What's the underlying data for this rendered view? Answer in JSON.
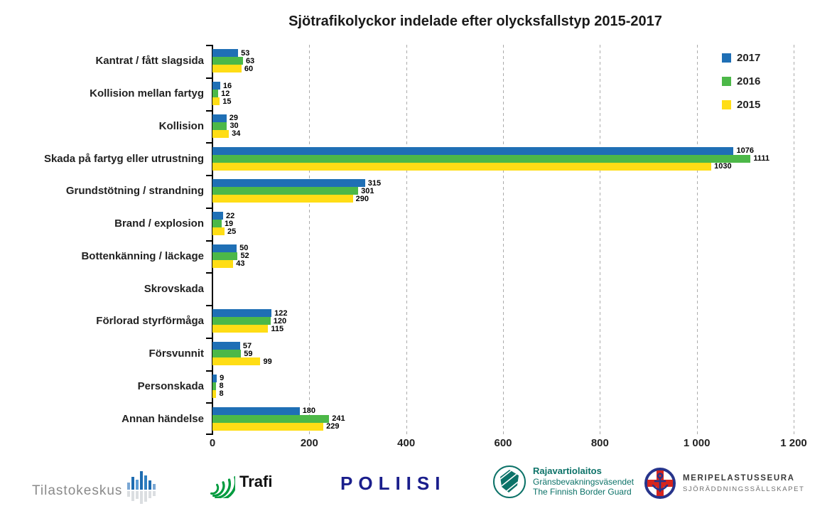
{
  "title": "Sjötrafikolyckor indelade efter olycksfallstyp 2015-2017",
  "chart_data": {
    "type": "bar",
    "orientation": "horizontal",
    "title": "Sjötrafikolyckor indelade efter olycksfallstyp 2015-2017",
    "categories": [
      "Kantrat / fått slagsida",
      "Kollision mellan fartyg",
      "Kollision",
      "Skada på fartyg eller utrustning",
      "Grundstötning / strandning",
      "Brand / explosion",
      "Bottenkänning / läckage",
      "Skrovskada",
      "Förlorad styrförmåga",
      "Försvunnit",
      "Personskada",
      "Annan händelse"
    ],
    "series": [
      {
        "name": "2017",
        "color": "#1f6fb5",
        "values": [
          53,
          16,
          29,
          1076,
          315,
          22,
          50,
          0,
          122,
          57,
          9,
          180
        ]
      },
      {
        "name": "2016",
        "color": "#4cb848",
        "values": [
          63,
          12,
          30,
          1111,
          301,
          19,
          52,
          0,
          120,
          59,
          8,
          241
        ]
      },
      {
        "name": "2015",
        "color": "#ffdd15",
        "values": [
          60,
          15,
          34,
          1030,
          290,
          25,
          43,
          0,
          115,
          99,
          8,
          229
        ]
      }
    ],
    "xlim": [
      0,
      1200
    ],
    "x_tick_labels": [
      "0",
      "200",
      "400",
      "600",
      "800",
      "1 000",
      "1 200"
    ],
    "x_tick_values": [
      0,
      200,
      400,
      600,
      800,
      1000,
      1200
    ],
    "grid": "vertical-dashed",
    "legend_position": "top-right",
    "value_labels_shown": true,
    "zero_values_unlabeled": true
  },
  "colors": {
    "series_2017": "#1f6fb5",
    "series_2016": "#4cb848",
    "series_2015": "#ffdd15",
    "gridline": "#ababab",
    "axis": "#000000",
    "poliisi_navy": "#1a1e8c",
    "border_guard_teal": "#0c7268",
    "meripelastus_navy": "#27348b",
    "meripelastus_red": "#d6251d",
    "tilastokeskus_gray": "#8a8a8a",
    "trafi_green": "#009b3e"
  },
  "footer": {
    "logos": [
      {
        "id": "tilastokeskus",
        "text": "Tilastokeskus"
      },
      {
        "id": "trafi",
        "text": "Trafi"
      },
      {
        "id": "poliisi",
        "text": "POLIISI"
      },
      {
        "id": "rajavartiolaitos",
        "lines": [
          "Rajavartiolaitos",
          "Gränsbevakningsväsendet",
          "The Finnish Border Guard"
        ]
      },
      {
        "id": "meripelastusseura",
        "lines": [
          "MERIPELASTUSSEURA",
          "SJÖRÄDDNINGSSÄLLSKAPET"
        ]
      }
    ]
  }
}
